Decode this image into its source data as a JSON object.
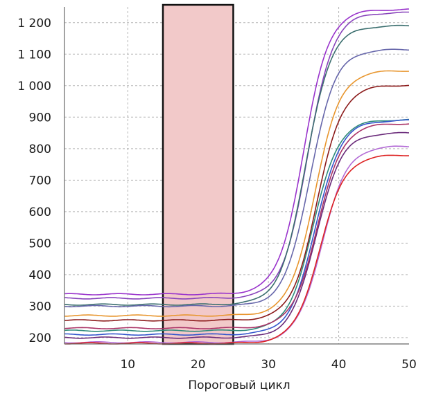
{
  "chart_data": {
    "type": "line",
    "xlabel": "Пороговый цикл",
    "ylabel": "",
    "xlim": [
      1,
      50
    ],
    "ylim": [
      180,
      1250
    ],
    "grid": true,
    "x_ticks": [
      {
        "value": 10,
        "label": "10"
      },
      {
        "value": 20,
        "label": "20"
      },
      {
        "value": 30,
        "label": "30"
      },
      {
        "value": 40,
        "label": "40"
      },
      {
        "value": 50,
        "label": "50"
      }
    ],
    "y_ticks": [
      {
        "value": 200,
        "label": "200"
      },
      {
        "value": 300,
        "label": "300"
      },
      {
        "value": 400,
        "label": "400"
      },
      {
        "value": 500,
        "label": "500"
      },
      {
        "value": 600,
        "label": "600"
      },
      {
        "value": 700,
        "label": "700"
      },
      {
        "value": 800,
        "label": "800"
      },
      {
        "value": 900,
        "label": "900"
      },
      {
        "value": 1000,
        "label": "1 000"
      },
      {
        "value": 1100,
        "label": "1 100"
      },
      {
        "value": 1200,
        "label": "1 200"
      }
    ],
    "baseline_window": {
      "x_start": 15,
      "x_end": 25,
      "fill": "#f2c9c9",
      "stroke": "#111111"
    },
    "series": [
      {
        "color": "#9933cc",
        "baseline": 338,
        "plateau": 1242,
        "midpoint": 35.0,
        "slope": 0.55
      },
      {
        "color": "#8844bb",
        "baseline": 325,
        "plateau": 1232,
        "midpoint": 35.6,
        "slope": 0.55
      },
      {
        "color": "#3a6e6e",
        "baseline": 305,
        "plateau": 1190,
        "midpoint": 35.3,
        "slope": 0.55
      },
      {
        "color": "#6666aa",
        "baseline": 300,
        "plateau": 1115,
        "midpoint": 35.9,
        "slope": 0.55
      },
      {
        "color": "#e8962e",
        "baseline": 270,
        "plateau": 1048,
        "midpoint": 36.6,
        "slope": 0.55
      },
      {
        "color": "#8b1a1a",
        "baseline": 255,
        "plateau": 1002,
        "midpoint": 36.9,
        "slope": 0.55
      },
      {
        "color": "#2e8b7a",
        "baseline": 222,
        "plateau": 892,
        "midpoint": 36.4,
        "slope": 0.55
      },
      {
        "color": "#3355cc",
        "baseline": 210,
        "plateau": 890,
        "midpoint": 36.7,
        "slope": 0.55
      },
      {
        "color": "#6a2a7a",
        "baseline": 200,
        "plateau": 850,
        "midpoint": 36.8,
        "slope": 0.55
      },
      {
        "color": "#b36bd6",
        "baseline": 185,
        "plateau": 808,
        "midpoint": 37.6,
        "slope": 0.55
      },
      {
        "color": "#dd2222",
        "baseline": 182,
        "plateau": 780,
        "midpoint": 37.3,
        "slope": 0.55
      },
      {
        "color": "#aa3366",
        "baseline": 230,
        "plateau": 880,
        "midpoint": 37.0,
        "slope": 0.55
      }
    ]
  }
}
